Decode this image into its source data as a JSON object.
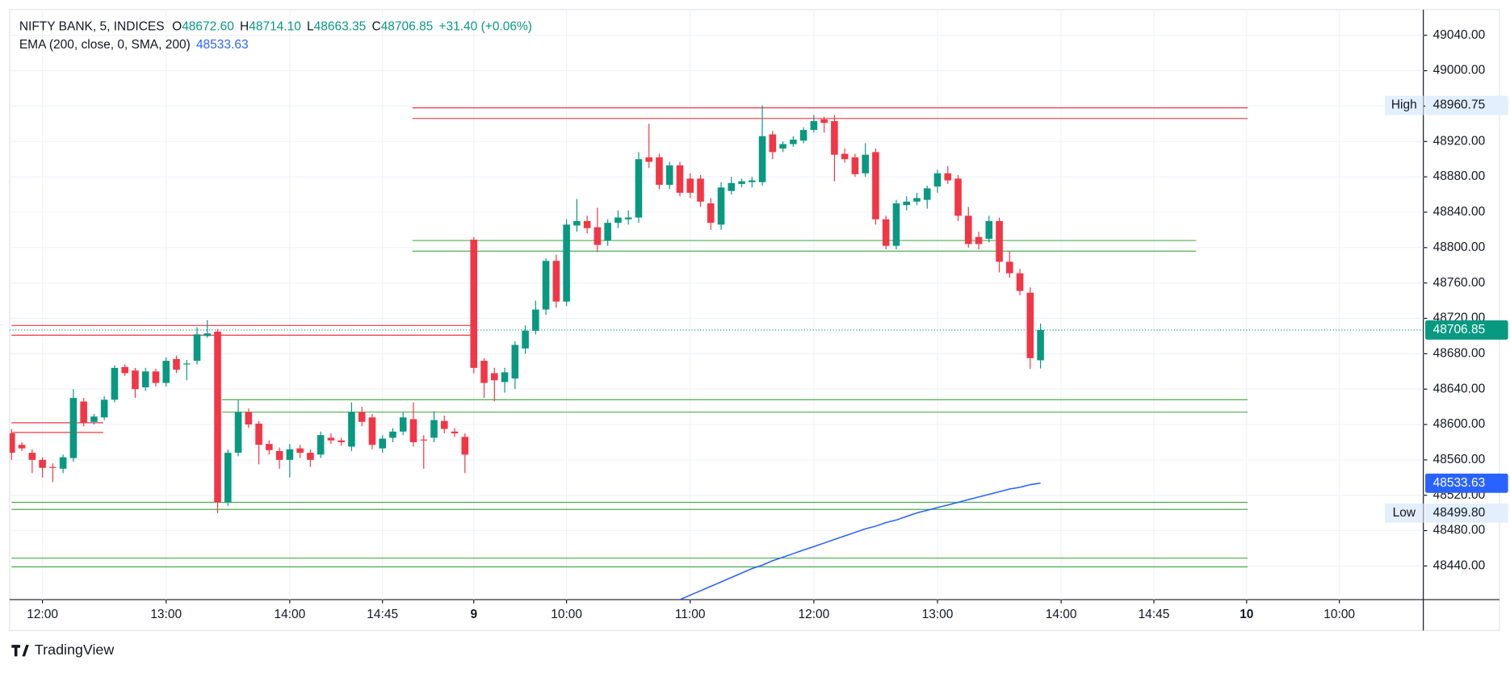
{
  "chart_data": {
    "type": "candlestick",
    "header": {
      "symbol": "NIFTY BANK, 5, INDICES",
      "items": [
        {
          "key": "O",
          "value": "48672.60"
        },
        {
          "key": "H",
          "value": "48714.10"
        },
        {
          "key": "L",
          "value": "48663.35"
        },
        {
          "key": "C",
          "value": "48706.85"
        }
      ],
      "change": "+31.40 (+0.06%)"
    },
    "legend": {
      "label": "EMA (200, close, 0, SMA, 200)",
      "value": "48533.63"
    },
    "up_color": "#089981",
    "down_color": "#f23645",
    "ema_color": "#2962ff",
    "open": [
      48590,
      48577,
      48568,
      48560,
      48552,
      48550,
      48562,
      48626,
      48603,
      48608,
      48628,
      48665,
      48661,
      48642,
      48660,
      48647,
      48674,
      48668,
      48672,
      48700,
      48705,
      48512,
      48568,
      48614,
      48601,
      48578,
      48570,
      48560,
      48573,
      48568,
      48566,
      48585,
      48582,
      48575,
      48614,
      48608,
      48573,
      48585,
      48592,
      48606,
      48583,
      48585,
      48604,
      48592,
      48586,
      48809,
      48672,
      48658,
      48648,
      48652,
      48686,
      48706,
      48730,
      48785,
      48739,
      48825,
      48830,
      48823,
      48808,
      48828,
      48832,
      48834,
      48902,
      48902,
      48871,
      48893,
      48878,
      48878,
      48850,
      48826,
      48864,
      48872,
      48874,
      48874,
      48928,
      48912,
      48917,
      48921,
      48933,
      48945,
      48943,
      48906,
      48902,
      48884,
      48908,
      48832,
      48802,
      48848,
      48852,
      48854,
      48869,
      48884,
      48878,
      48836,
      48812,
      48810,
      48830,
      48784,
      48771,
      48749,
      48672.6
    ],
    "high": [
      48595,
      48580,
      48572,
      48563,
      48556,
      48566,
      48640,
      48630,
      48612,
      48632,
      48667,
      48668,
      48664,
      48664,
      48663,
      48676,
      48678,
      48673,
      48710,
      48718,
      48708,
      48572,
      48628,
      48618,
      48604,
      48582,
      48574,
      48578,
      48577,
      48572,
      48592,
      48590,
      48585,
      48625,
      48620,
      48612,
      48588,
      48596,
      48614,
      48625,
      48588,
      48615,
      48610,
      48596,
      48590,
      48812,
      48675,
      48664,
      48664,
      48694,
      48712,
      48740,
      48788,
      48792,
      48832,
      48855,
      48836,
      48845,
      48832,
      48842,
      48842,
      48908,
      48940,
      48906,
      48897,
      48897,
      48884,
      48882,
      48856,
      48874,
      48880,
      48878,
      48880,
      48960.75,
      48932,
      48920,
      48926,
      48936,
      48950,
      48948,
      48950,
      48912,
      48906,
      48918,
      48912,
      48836,
      48854,
      48858,
      48862,
      48870,
      48888,
      48892,
      48882,
      48846,
      48818,
      48836,
      48834,
      48796,
      48776,
      48755,
      48714.1
    ],
    "low": [
      48560,
      48570,
      48545,
      48540,
      48535,
      48545,
      48558,
      48598,
      48600,
      48605,
      48625,
      48655,
      48630,
      48638,
      48643,
      48643,
      48658,
      48650,
      48668,
      48698,
      48499.8,
      48508,
      48564,
      48596,
      48555,
      48566,
      48550,
      48540,
      48562,
      48552,
      48562,
      48578,
      48576,
      48570,
      48598,
      48572,
      48568,
      48580,
      48588,
      48575,
      48550,
      48580,
      48590,
      48586,
      48545,
      48658,
      48630,
      48626,
      48636,
      48640,
      48680,
      48702,
      48724,
      48732,
      48734,
      48818,
      48816,
      48795,
      48802,
      48822,
      48826,
      48828,
      48890,
      48866,
      48866,
      48858,
      48856,
      48846,
      48820,
      48820,
      48860,
      48868,
      48868,
      48870,
      48900,
      48908,
      48914,
      48918,
      48930,
      48930,
      48875,
      48896,
      48880,
      48880,
      48826,
      48798,
      48798,
      48842,
      48848,
      48844,
      48862,
      48872,
      48830,
      48800,
      48798,
      48806,
      48772,
      48766,
      48746,
      48663,
      48663.35
    ],
    "close": [
      48568,
      48573,
      48560,
      48551,
      48551,
      48563,
      48630,
      48602,
      48609,
      48628,
      48664,
      48658,
      48640,
      48660,
      48647,
      48672,
      48662,
      48669,
      48702,
      48703,
      48512,
      48568,
      48614,
      48600,
      48577,
      48571,
      48560,
      48572,
      48568,
      48560,
      48588,
      48582,
      48580,
      48614,
      48603,
      48577,
      48584,
      48592,
      48608,
      48580,
      48582,
      48605,
      48595,
      48590,
      48566,
      48664,
      48647,
      48650,
      48659,
      48690,
      48706,
      48730,
      48785,
      48739,
      48826,
      48830,
      48822,
      48803,
      48828,
      48834,
      48834,
      48900,
      48897,
      48871,
      48893,
      48862,
      48862,
      48852,
      48828,
      48868,
      48873,
      48875,
      48876,
      48926,
      48908,
      48917,
      48922,
      48933,
      48943,
      48941,
      48905,
      48900,
      48883,
      48905,
      48832,
      48802,
      48850,
      48852,
      48856,
      48867,
      48884,
      48876,
      48836,
      48804,
      48804,
      48830,
      48784,
      48771,
      48751,
      48675,
      48706.85
    ],
    "ema": [
      null,
      null,
      null,
      null,
      null,
      null,
      null,
      null,
      null,
      null,
      null,
      null,
      null,
      null,
      null,
      null,
      null,
      null,
      null,
      null,
      null,
      null,
      null,
      null,
      null,
      null,
      null,
      null,
      null,
      null,
      null,
      null,
      null,
      null,
      null,
      null,
      null,
      null,
      null,
      null,
      null,
      null,
      null,
      null,
      null,
      null,
      null,
      null,
      null,
      null,
      null,
      null,
      null,
      null,
      null,
      null,
      null,
      null,
      null,
      null,
      null,
      null,
      null,
      null,
      null,
      48402,
      48407,
      48412,
      48417,
      48422,
      48427,
      48432,
      48437,
      48441,
      48446,
      48450,
      48454,
      48458,
      48462,
      48466,
      48470,
      48474,
      48478,
      48482,
      48485,
      48489,
      48492,
      48496,
      48500,
      48503,
      48506,
      48509,
      48512,
      48515,
      48518,
      48521,
      48524,
      48527,
      48529,
      48532,
      48533.63
    ],
    "levels": [
      {
        "value": 48958,
        "color": "#f23645",
        "start": 38.9,
        "end": 120.1
      },
      {
        "value": 48946,
        "color": "#f23645",
        "start": 38.9,
        "end": 120.1
      },
      {
        "value": 48808,
        "color": "#4caf50",
        "start": 38.9,
        "end": 115.1
      },
      {
        "value": 48796,
        "color": "#4caf50",
        "start": 38.9,
        "end": 115.1
      },
      {
        "value": 48712,
        "color": "#f23645",
        "start": 0,
        "end": 44.8
      },
      {
        "value": 48701,
        "color": "#f23645",
        "start": 0,
        "end": 44.8
      },
      {
        "value": 48602,
        "color": "#f23645",
        "start": 0,
        "end": 8.9
      },
      {
        "value": 48591,
        "color": "#f23645",
        "start": 0,
        "end": 8.9
      },
      {
        "value": 48628,
        "color": "#4caf50",
        "start": 20.4,
        "end": 120.1
      },
      {
        "value": 48614,
        "color": "#4caf50",
        "start": 20.4,
        "end": 120.1
      },
      {
        "value": 48512,
        "color": "#4caf50",
        "start": 0,
        "end": 120.1
      },
      {
        "value": 48504,
        "color": "#4caf50",
        "start": 0,
        "end": 120.1
      },
      {
        "value": 48449,
        "color": "#4caf50",
        "start": 0,
        "end": 120.1
      },
      {
        "value": 48439,
        "color": "#4caf50",
        "start": 0,
        "end": 120.1
      }
    ],
    "ylim": [
      48402,
      49069
    ],
    "yticks": [
      {
        "value": 48440,
        "label": "48440.00"
      },
      {
        "value": 48480,
        "label": "48480.00"
      },
      {
        "value": 48520,
        "label": "48520.00"
      },
      {
        "value": 48560,
        "label": "48560.00"
      },
      {
        "value": 48600,
        "label": "48600.00"
      },
      {
        "value": 48640,
        "label": "48640.00"
      },
      {
        "value": 48680,
        "label": "48680.00"
      },
      {
        "value": 48720,
        "label": "48720.00"
      },
      {
        "value": 48760,
        "label": "48760.00"
      },
      {
        "value": 48800,
        "label": "48800.00"
      },
      {
        "value": 48840,
        "label": "48840.00"
      },
      {
        "value": 48880,
        "label": "48880.00"
      },
      {
        "value": 48920,
        "label": "48920.00"
      },
      {
        "value": 48960,
        "label": "48960.00"
      },
      {
        "value": 49000,
        "label": "49000.00"
      },
      {
        "value": 49040,
        "label": "49040.00"
      }
    ],
    "xticks": [
      {
        "value": 3,
        "label": "12:00"
      },
      {
        "value": 15,
        "label": "13:00"
      },
      {
        "value": 27,
        "label": "14:00"
      },
      {
        "value": 36,
        "label": "14:45"
      },
      {
        "value": 45,
        "label": "9"
      },
      {
        "value": 54,
        "label": "10:00"
      },
      {
        "value": 66,
        "label": "11:00"
      },
      {
        "value": 78,
        "label": "12:00"
      },
      {
        "value": 90,
        "label": "13:00"
      },
      {
        "value": 102,
        "label": "14:00"
      },
      {
        "value": 111,
        "label": "14:45"
      },
      {
        "value": 120,
        "label": "10"
      },
      {
        "value": 129,
        "label": "10:00"
      }
    ],
    "tags": {
      "high": {
        "name": "High",
        "value": 48960.75
      },
      "low": {
        "name": "Low",
        "value": 48499.8,
        "label": "48499.80"
      },
      "ema": {
        "value": 48533.63
      },
      "last": {
        "value": 48706.85
      }
    },
    "logo": "TradingView"
  }
}
